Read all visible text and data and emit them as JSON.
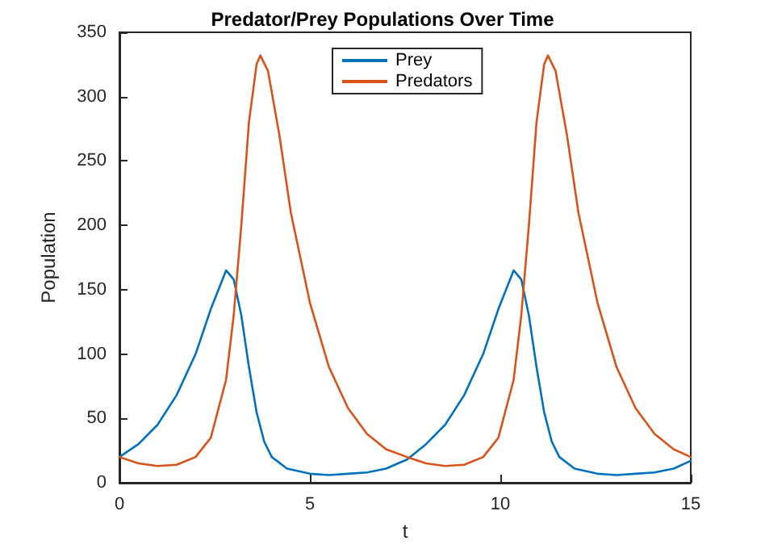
{
  "chart_data": {
    "type": "line",
    "title": "Predator/Prey Populations Over Time",
    "xlabel": "t",
    "ylabel": "Population",
    "xlim": [
      0,
      15
    ],
    "xticks": [
      0,
      5,
      10,
      15
    ],
    "ylim": [
      0,
      350
    ],
    "yticks": [
      0,
      50,
      100,
      150,
      200,
      250,
      300,
      350
    ],
    "grid": false,
    "legend": "top",
    "marker": "none",
    "line_style": "solid",
    "series": [
      {
        "name": "Prey",
        "color": "#0072bd",
        "x": [
          0,
          0.5,
          1,
          1.5,
          2,
          2.4,
          2.8,
          3,
          3.2,
          3.4,
          3.6,
          3.8,
          4,
          4.4,
          5,
          5.5,
          6,
          6.5,
          7,
          7.55,
          8.05,
          8.55,
          9.05,
          9.55,
          9.95,
          10.35,
          10.55,
          10.75,
          10.95,
          11.15,
          11.35,
          11.55,
          11.95,
          12.55,
          13.05,
          13.55,
          14.05,
          14.55,
          15
        ],
        "values": [
          20,
          30,
          45,
          68,
          100,
          135,
          165,
          158,
          130,
          90,
          55,
          32,
          20,
          11,
          7,
          6,
          7,
          8,
          11,
          18,
          30,
          45,
          68,
          100,
          135,
          165,
          158,
          130,
          90,
          55,
          32,
          20,
          11,
          7,
          6,
          7,
          8,
          11,
          17
        ]
      },
      {
        "name": "Predators",
        "color": "#d95319",
        "x": [
          0,
          0.5,
          1,
          1.5,
          2,
          2.4,
          2.8,
          3,
          3.2,
          3.4,
          3.6,
          3.7,
          3.9,
          4.2,
          4.5,
          5,
          5.5,
          6,
          6.5,
          7,
          7.55,
          8.05,
          8.55,
          9.05,
          9.55,
          9.95,
          10.35,
          10.55,
          10.75,
          10.95,
          11.15,
          11.25,
          11.45,
          11.75,
          12.05,
          12.55,
          13.05,
          13.55,
          14.05,
          14.55,
          15
        ],
        "values": [
          20,
          15,
          13,
          14,
          20,
          35,
          80,
          130,
          200,
          280,
          325,
          332,
          320,
          270,
          210,
          140,
          90,
          58,
          38,
          26,
          20,
          15,
          13,
          14,
          20,
          35,
          80,
          130,
          200,
          280,
          325,
          332,
          320,
          270,
          210,
          140,
          90,
          58,
          38,
          26,
          20
        ]
      }
    ]
  }
}
